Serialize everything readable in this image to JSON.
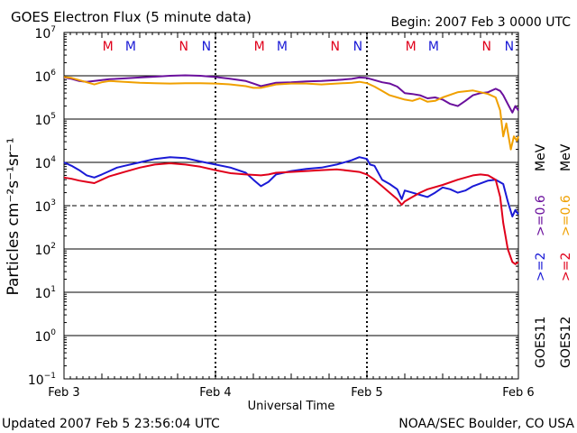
{
  "chart_data": {
    "type": "line",
    "title": "GOES Electron Flux (5 minute data)",
    "begin_label": "Begin: 2007 Feb 3 0000 UTC",
    "xlabel": "Universal Time",
    "ylabel": "Particles cm⁻²s⁻¹sr⁻¹",
    "y_scale": "log",
    "ylim_exp": [
      -1,
      7
    ],
    "xlim_days": [
      0,
      3
    ],
    "x_ticks": [
      {
        "day": 0,
        "label": "Feb 3"
      },
      {
        "day": 1,
        "label": "Feb 4"
      },
      {
        "day": 2,
        "label": "Feb 5"
      },
      {
        "day": 3,
        "label": "Feb 6"
      }
    ],
    "y_ticks": [
      {
        "exp": 7,
        "label": "7"
      },
      {
        "exp": 6,
        "label": "6"
      },
      {
        "exp": 5,
        "label": "5"
      },
      {
        "exp": 4,
        "label": "4"
      },
      {
        "exp": 3,
        "label": "3"
      },
      {
        "exp": 2,
        "label": "2"
      },
      {
        "exp": 1,
        "label": "1"
      },
      {
        "exp": 0,
        "label": "0"
      },
      {
        "exp": -1,
        "label": "−1"
      }
    ],
    "threshold_exp": 3,
    "mn_markers": [
      {
        "day": 0.29,
        "text": "M",
        "color": "#e0001b"
      },
      {
        "day": 0.44,
        "text": "M",
        "color": "#1a1ad6"
      },
      {
        "day": 0.79,
        "text": "N",
        "color": "#e0001b"
      },
      {
        "day": 0.94,
        "text": "N",
        "color": "#1a1ad6"
      },
      {
        "day": 1.29,
        "text": "M",
        "color": "#e0001b"
      },
      {
        "day": 1.44,
        "text": "M",
        "color": "#1a1ad6"
      },
      {
        "day": 1.79,
        "text": "N",
        "color": "#e0001b"
      },
      {
        "day": 1.94,
        "text": "N",
        "color": "#1a1ad6"
      },
      {
        "day": 2.29,
        "text": "M",
        "color": "#e0001b"
      },
      {
        "day": 2.44,
        "text": "M",
        "color": "#1a1ad6"
      },
      {
        "day": 2.79,
        "text": "N",
        "color": "#e0001b"
      },
      {
        "day": 2.94,
        "text": "N",
        "color": "#1a1ad6"
      }
    ],
    "series": [
      {
        "name": "GOES11 >=0.6 MeV",
        "color": "#6a0f9c",
        "points": [
          [
            0,
            5.96
          ],
          [
            0.05,
            5.93
          ],
          [
            0.1,
            5.88
          ],
          [
            0.15,
            5.86
          ],
          [
            0.2,
            5.88
          ],
          [
            0.3,
            5.92
          ],
          [
            0.4,
            5.94
          ],
          [
            0.5,
            5.96
          ],
          [
            0.6,
            5.98
          ],
          [
            0.7,
            6.0
          ],
          [
            0.8,
            6.01
          ],
          [
            0.9,
            6.0
          ],
          [
            1.0,
            5.97
          ],
          [
            1.1,
            5.93
          ],
          [
            1.2,
            5.88
          ],
          [
            1.25,
            5.82
          ],
          [
            1.3,
            5.76
          ],
          [
            1.35,
            5.8
          ],
          [
            1.4,
            5.84
          ],
          [
            1.5,
            5.85
          ],
          [
            1.6,
            5.87
          ],
          [
            1.7,
            5.88
          ],
          [
            1.8,
            5.9
          ],
          [
            1.9,
            5.93
          ],
          [
            1.95,
            5.96
          ],
          [
            2.0,
            5.95
          ],
          [
            2.05,
            5.9
          ],
          [
            2.1,
            5.85
          ],
          [
            2.15,
            5.82
          ],
          [
            2.2,
            5.75
          ],
          [
            2.25,
            5.6
          ],
          [
            2.3,
            5.58
          ],
          [
            2.35,
            5.55
          ],
          [
            2.4,
            5.48
          ],
          [
            2.45,
            5.5
          ],
          [
            2.5,
            5.45
          ],
          [
            2.55,
            5.35
          ],
          [
            2.6,
            5.3
          ],
          [
            2.65,
            5.42
          ],
          [
            2.7,
            5.55
          ],
          [
            2.75,
            5.6
          ],
          [
            2.8,
            5.62
          ],
          [
            2.85,
            5.7
          ],
          [
            2.88,
            5.65
          ],
          [
            2.9,
            5.55
          ],
          [
            2.93,
            5.35
          ],
          [
            2.96,
            5.15
          ],
          [
            2.98,
            5.3
          ],
          [
            3.0,
            5.2
          ]
        ]
      },
      {
        "name": "GOES12 >=0.6 MeV",
        "color": "#f0a000",
        "points": [
          [
            0,
            5.97
          ],
          [
            0.05,
            5.95
          ],
          [
            0.1,
            5.9
          ],
          [
            0.15,
            5.85
          ],
          [
            0.2,
            5.8
          ],
          [
            0.25,
            5.85
          ],
          [
            0.3,
            5.88
          ],
          [
            0.4,
            5.86
          ],
          [
            0.5,
            5.84
          ],
          [
            0.6,
            5.83
          ],
          [
            0.7,
            5.82
          ],
          [
            0.8,
            5.83
          ],
          [
            0.9,
            5.83
          ],
          [
            1.0,
            5.82
          ],
          [
            1.1,
            5.8
          ],
          [
            1.2,
            5.76
          ],
          [
            1.25,
            5.72
          ],
          [
            1.3,
            5.72
          ],
          [
            1.35,
            5.76
          ],
          [
            1.4,
            5.8
          ],
          [
            1.5,
            5.82
          ],
          [
            1.6,
            5.82
          ],
          [
            1.7,
            5.8
          ],
          [
            1.8,
            5.82
          ],
          [
            1.9,
            5.84
          ],
          [
            1.95,
            5.86
          ],
          [
            2.0,
            5.83
          ],
          [
            2.05,
            5.75
          ],
          [
            2.1,
            5.65
          ],
          [
            2.15,
            5.55
          ],
          [
            2.2,
            5.5
          ],
          [
            2.25,
            5.45
          ],
          [
            2.3,
            5.42
          ],
          [
            2.35,
            5.48
          ],
          [
            2.4,
            5.4
          ],
          [
            2.45,
            5.42
          ],
          [
            2.5,
            5.5
          ],
          [
            2.6,
            5.62
          ],
          [
            2.7,
            5.66
          ],
          [
            2.75,
            5.62
          ],
          [
            2.8,
            5.58
          ],
          [
            2.85,
            5.5
          ],
          [
            2.88,
            5.2
          ],
          [
            2.9,
            4.6
          ],
          [
            2.92,
            4.9
          ],
          [
            2.95,
            4.3
          ],
          [
            2.97,
            4.6
          ],
          [
            2.99,
            4.5
          ],
          [
            3.0,
            4.6
          ]
        ]
      },
      {
        "name": "GOES11 >=2 MeV",
        "color": "#1a1ad6",
        "points": [
          [
            0,
            4.0
          ],
          [
            0.05,
            3.92
          ],
          [
            0.1,
            3.82
          ],
          [
            0.15,
            3.7
          ],
          [
            0.2,
            3.65
          ],
          [
            0.25,
            3.72
          ],
          [
            0.3,
            3.8
          ],
          [
            0.35,
            3.88
          ],
          [
            0.4,
            3.92
          ],
          [
            0.5,
            4.0
          ],
          [
            0.6,
            4.08
          ],
          [
            0.7,
            4.12
          ],
          [
            0.8,
            4.1
          ],
          [
            0.9,
            4.02
          ],
          [
            1.0,
            3.95
          ],
          [
            1.1,
            3.88
          ],
          [
            1.2,
            3.76
          ],
          [
            1.25,
            3.6
          ],
          [
            1.3,
            3.45
          ],
          [
            1.35,
            3.55
          ],
          [
            1.4,
            3.72
          ],
          [
            1.5,
            3.8
          ],
          [
            1.6,
            3.85
          ],
          [
            1.7,
            3.88
          ],
          [
            1.8,
            3.95
          ],
          [
            1.9,
            4.05
          ],
          [
            1.95,
            4.12
          ],
          [
            2.0,
            4.08
          ],
          [
            2.02,
            3.95
          ],
          [
            2.05,
            3.92
          ],
          [
            2.1,
            3.6
          ],
          [
            2.15,
            3.5
          ],
          [
            2.2,
            3.38
          ],
          [
            2.23,
            3.15
          ],
          [
            2.25,
            3.35
          ],
          [
            2.3,
            3.3
          ],
          [
            2.35,
            3.25
          ],
          [
            2.4,
            3.2
          ],
          [
            2.45,
            3.3
          ],
          [
            2.5,
            3.42
          ],
          [
            2.55,
            3.38
          ],
          [
            2.6,
            3.3
          ],
          [
            2.65,
            3.35
          ],
          [
            2.7,
            3.45
          ],
          [
            2.8,
            3.58
          ],
          [
            2.85,
            3.6
          ],
          [
            2.9,
            3.5
          ],
          [
            2.93,
            3.1
          ],
          [
            2.96,
            2.75
          ],
          [
            2.98,
            2.9
          ],
          [
            3.0,
            2.8
          ]
        ]
      },
      {
        "name": "GOES12 >=2 MeV",
        "color": "#e0001b",
        "points": [
          [
            0,
            3.65
          ],
          [
            0.05,
            3.62
          ],
          [
            0.1,
            3.58
          ],
          [
            0.15,
            3.55
          ],
          [
            0.2,
            3.52
          ],
          [
            0.25,
            3.6
          ],
          [
            0.3,
            3.68
          ],
          [
            0.4,
            3.78
          ],
          [
            0.5,
            3.88
          ],
          [
            0.6,
            3.95
          ],
          [
            0.7,
            3.98
          ],
          [
            0.8,
            3.95
          ],
          [
            0.9,
            3.9
          ],
          [
            1.0,
            3.82
          ],
          [
            1.1,
            3.75
          ],
          [
            1.2,
            3.72
          ],
          [
            1.3,
            3.7
          ],
          [
            1.35,
            3.72
          ],
          [
            1.4,
            3.76
          ],
          [
            1.5,
            3.78
          ],
          [
            1.6,
            3.8
          ],
          [
            1.7,
            3.82
          ],
          [
            1.8,
            3.84
          ],
          [
            1.9,
            3.8
          ],
          [
            1.95,
            3.78
          ],
          [
            2.0,
            3.72
          ],
          [
            2.05,
            3.6
          ],
          [
            2.1,
            3.45
          ],
          [
            2.15,
            3.3
          ],
          [
            2.2,
            3.15
          ],
          [
            2.23,
            3.02
          ],
          [
            2.25,
            3.1
          ],
          [
            2.3,
            3.2
          ],
          [
            2.35,
            3.3
          ],
          [
            2.4,
            3.38
          ],
          [
            2.5,
            3.48
          ],
          [
            2.6,
            3.6
          ],
          [
            2.7,
            3.7
          ],
          [
            2.75,
            3.72
          ],
          [
            2.8,
            3.7
          ],
          [
            2.85,
            3.6
          ],
          [
            2.88,
            3.2
          ],
          [
            2.9,
            2.6
          ],
          [
            2.93,
            2.0
          ],
          [
            2.96,
            1.7
          ],
          [
            2.98,
            1.65
          ],
          [
            3.0,
            1.7
          ]
        ]
      }
    ],
    "right_labels": [
      {
        "key": "goes11",
        "text": "GOES11",
        "color": "#000000"
      },
      {
        "key": "goes12",
        "text": "GOES12",
        "color": "#000000"
      }
    ],
    "right_legend": {
      "col1": [
        {
          "text": ">=2",
          "color": "#1a1ad6"
        },
        {
          "text": ">=0.6",
          "color": "#6a0f9c"
        },
        {
          "text": "MeV",
          "color": "#000000"
        }
      ],
      "col2": [
        {
          "text": ">=2",
          "color": "#e0001b"
        },
        {
          "text": ">=0.6",
          "color": "#f0a000"
        },
        {
          "text": "MeV",
          "color": "#000000"
        }
      ]
    },
    "footer_left": "Updated 2007 Feb  5 23:56:04 UTC",
    "footer_right": "NOAA/SEC Boulder, CO USA"
  }
}
